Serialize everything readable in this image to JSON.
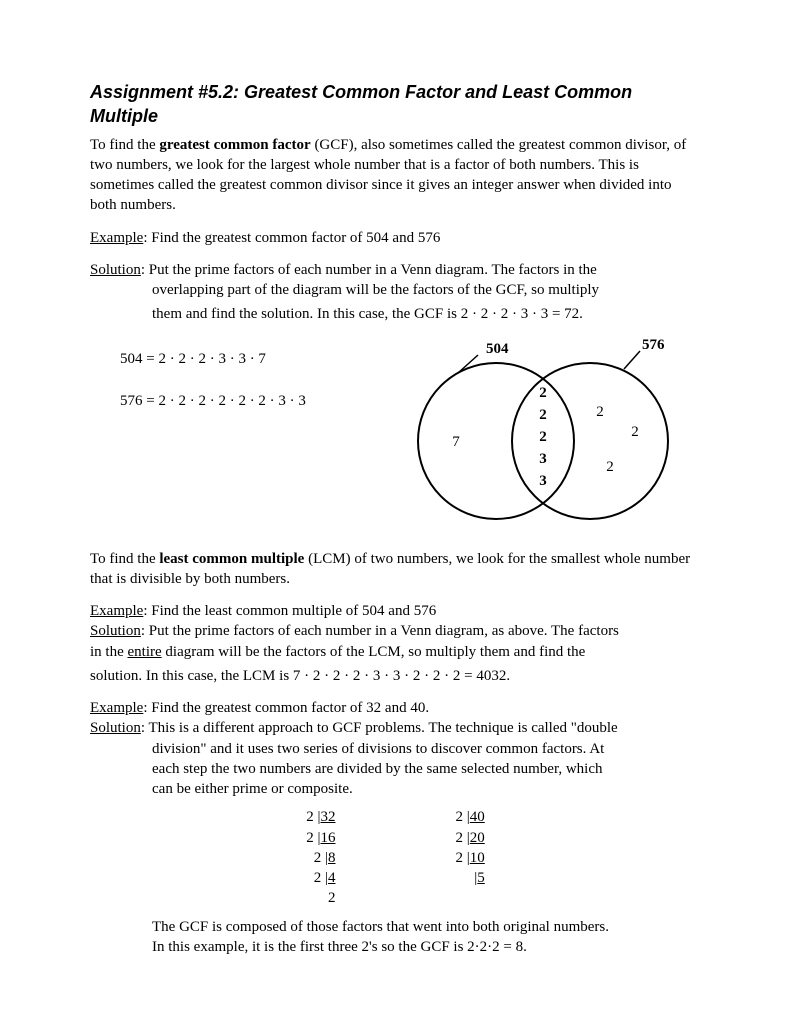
{
  "title": "Assignment #5.2: Greatest Common Factor and Least Common Multiple",
  "intro_a": "To find the ",
  "intro_bold": "greatest common factor",
  "intro_b": " (GCF), also sometimes called the greatest common divisor, of two numbers, we look for the largest whole number that is a factor of both numbers.  This is sometimes called the greatest common divisor since it gives an integer answer when divided into both numbers.",
  "ex1_label": "Example",
  "ex1_text": ":  Find the greatest common factor of 504 and 576",
  "sol1_label": "Solution",
  "sol1_a": ":  Put the prime factors of each number in a Venn diagram.  The factors in the",
  "sol1_b": "overlapping part of the diagram will be the factors of the GCF, so multiply",
  "sol1_c": "them and find the solution. In this case, the GCF is 2 · 2 · 2 · 3 · 3 = 72.",
  "fact504": "504 = 2 · 2 · 2 · 3 · 3 · 7",
  "fact576": "576 = 2 · 2 · 2 · 2 · 2 · 2 · 3 · 3",
  "venn": {
    "left_label": "504",
    "right_label": "576",
    "left_only": [
      "7"
    ],
    "center": [
      "2",
      "2",
      "2",
      "3",
      "3"
    ],
    "right_only": [
      "2",
      "2",
      "2"
    ],
    "stroke_width": 2,
    "color": "#000000",
    "font_size": 15,
    "label_font_size": 15
  },
  "lcm_a": "To find the ",
  "lcm_bold": "least common multiple",
  "lcm_b": " (LCM) of two numbers, we look for the smallest whole number that is divisible by both numbers.",
  "ex2_label": "Example",
  "ex2_text": ":  Find the least common multiple of 504 and 576",
  "sol2_label": "Solution",
  "sol2_a": ":  Put the prime factors of each number in a Venn diagram, as above.  The factors",
  "sol2_b": "in the ",
  "sol2_b_u": "entire",
  "sol2_b2": " diagram will be the factors of the LCM, so multiply them and find the",
  "sol2_c": "solution. In this case, the LCM is 7 · 2 · 2 · 2 · 3 · 3 · 2 · 2 · 2 = 4032.",
  "ex3_label": "Example",
  "ex3_text": ":  Find the greatest common factor of 32 and 40.",
  "sol3_label": "Solution",
  "sol3_a": ":  This is a different approach to GCF problems.  The technique is called \"double",
  "sol3_b": "division\" and it uses two series of divisions to discover common factors.  At",
  "sol3_c": "each step the two numbers are divided by the same selected number, which",
  "sol3_d": "can be either prime or composite.",
  "dd_left": [
    "2 |32",
    "2 |16",
    "2 |8",
    "2 |4",
    "2"
  ],
  "dd_left_u": [
    true,
    true,
    true,
    true,
    false
  ],
  "dd_right": [
    "2 |40",
    "2 |20",
    "2 |10",
    "   |5"
  ],
  "dd_right_u": [
    true,
    true,
    true,
    true
  ],
  "conclusion_a": "The GCF is composed of those factors that went into both original numbers.",
  "conclusion_b": "In this example, it is the first three 2's so the GCF is 2·2·2 = 8."
}
